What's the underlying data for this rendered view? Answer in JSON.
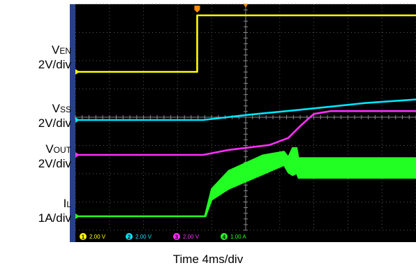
{
  "labels": {
    "en": {
      "main": "V",
      "sub": "EN",
      "scale": "2V/div"
    },
    "ss": {
      "main": "V",
      "sub": "SS",
      "scale": "2V/div"
    },
    "out": {
      "main": "V",
      "sub": "OUT",
      "scale": "2V/div"
    },
    "il": {
      "main": "I",
      "sub": "L",
      "scale": "1A/div"
    }
  },
  "time_label": "Time  4ms/div",
  "status_bar": {
    "ch1": "2.00 V",
    "ch2": "2.00 V",
    "ch3": "2.00 V",
    "ch4": "1.00 A"
  },
  "colors": {
    "screen": "#000000",
    "grid": "#5a5a5a",
    "ch1": "#ffff00",
    "ch2": "#00e5ff",
    "ch3": "#ff30ff",
    "ch4": "#22ff22",
    "bezel": "#27408b",
    "trigger": "#ff8c00"
  },
  "chart_data": {
    "type": "line",
    "x_unit": "ms",
    "x_per_div": 4,
    "xlim": [
      0,
      40
    ],
    "grid": true,
    "series": [
      {
        "name": "VEN",
        "scale": "2V/div",
        "points": [
          [
            0,
            0
          ],
          [
            14.3,
            0
          ],
          [
            14.3,
            4.0
          ],
          [
            40,
            4.0
          ]
        ]
      },
      {
        "name": "VSS",
        "scale": "2V/div",
        "points": [
          [
            0,
            0
          ],
          [
            15,
            0
          ],
          [
            20,
            0.35
          ],
          [
            26,
            0.7
          ],
          [
            30,
            0.95
          ],
          [
            34,
            1.2
          ],
          [
            40,
            1.45
          ]
        ]
      },
      {
        "name": "VOUT",
        "scale": "2V/div",
        "points": [
          [
            0,
            0
          ],
          [
            15,
            0
          ],
          [
            18,
            0.35
          ],
          [
            22.8,
            0.7
          ],
          [
            25,
            1.2
          ],
          [
            26.5,
            2.1
          ],
          [
            28,
            2.9
          ],
          [
            30,
            3.1
          ],
          [
            40,
            3.1
          ]
        ]
      },
      {
        "name": "IL",
        "scale": "1A/div",
        "envelope_low": [
          [
            0,
            0
          ],
          [
            15.2,
            0
          ],
          [
            15.3,
            0
          ],
          [
            16,
            0.9
          ],
          [
            18,
            1.5
          ],
          [
            22,
            2.3
          ],
          [
            24.5,
            2.8
          ],
          [
            25,
            2.4
          ],
          [
            25.5,
            2.25
          ],
          [
            26,
            2.35
          ],
          [
            26.2,
            2.1
          ],
          [
            40,
            2.1
          ]
        ],
        "envelope_high": [
          [
            0,
            0
          ],
          [
            15.2,
            0
          ],
          [
            16,
            1.5
          ],
          [
            18,
            2.5
          ],
          [
            22,
            3.35
          ],
          [
            24.5,
            3.55
          ],
          [
            25,
            3.25
          ],
          [
            25.5,
            3.75
          ],
          [
            26,
            3.75
          ],
          [
            26.2,
            3.2
          ],
          [
            40,
            3.2
          ]
        ]
      }
    ]
  }
}
